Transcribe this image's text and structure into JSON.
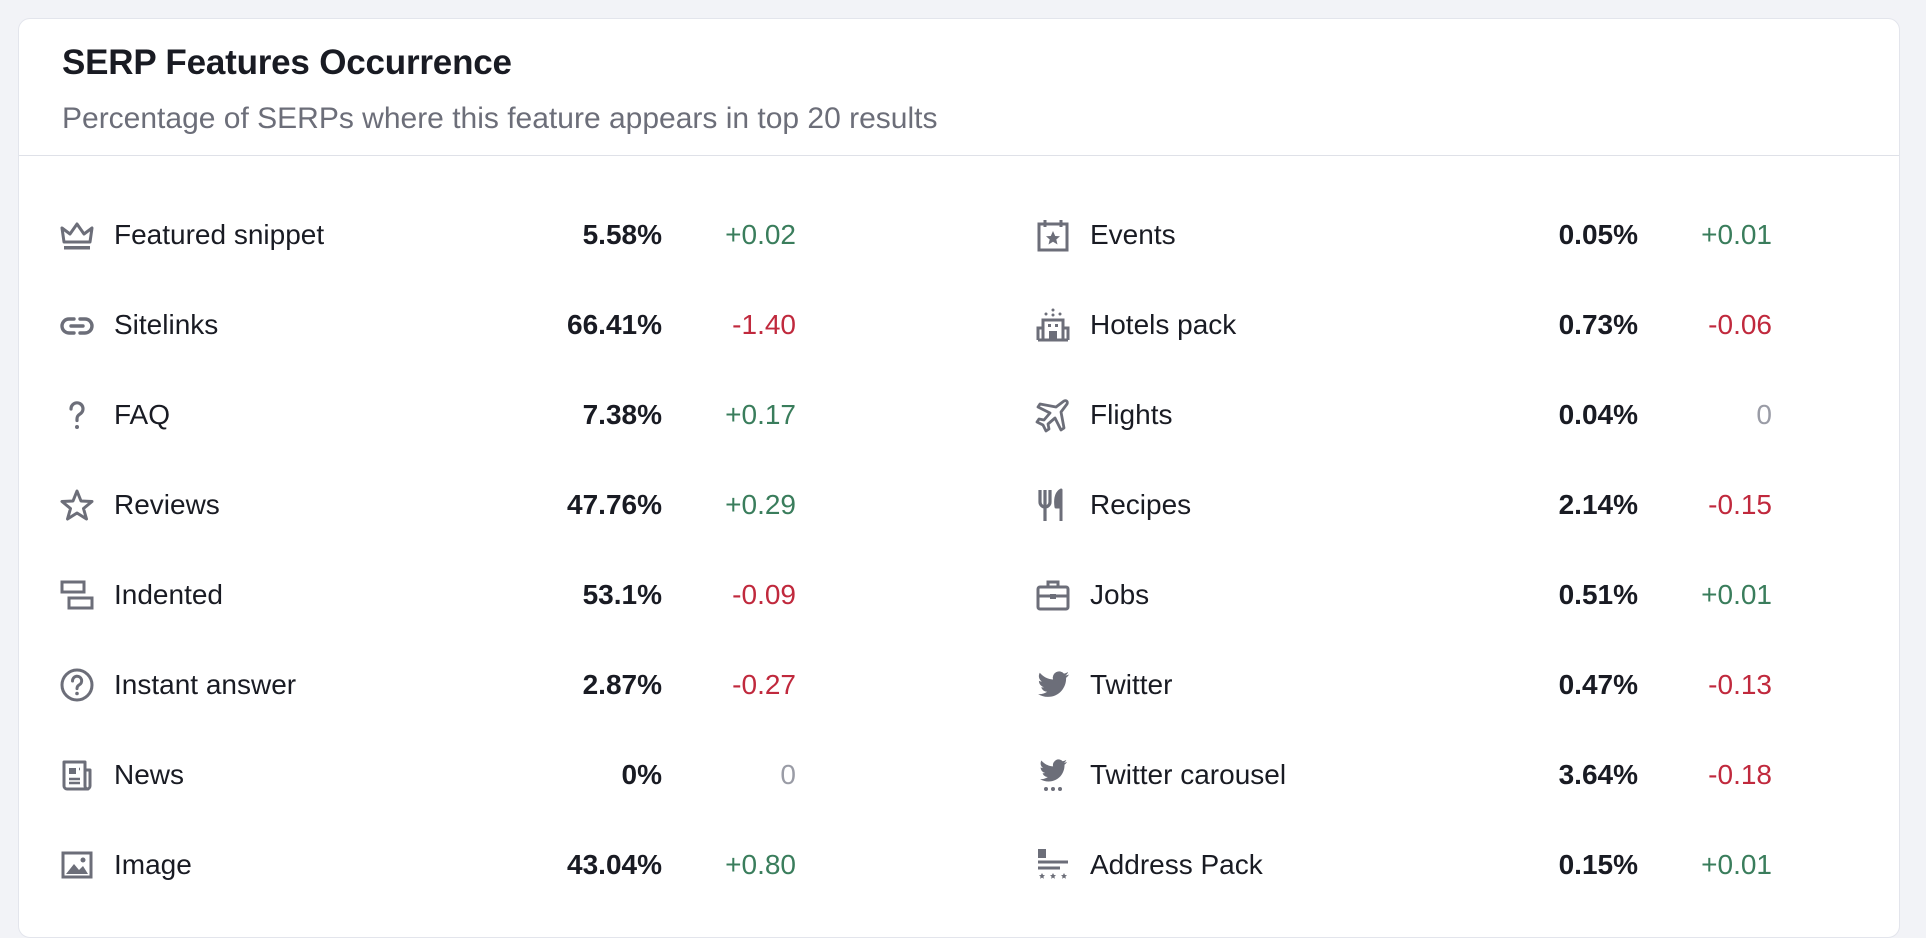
{
  "header": {
    "title": "SERP Features Occurrence",
    "subtitle": "Percentage of SERPs where this feature appears in top 20 results"
  },
  "colors": {
    "positive": "#3a7d5c",
    "negative": "#c0293d",
    "neutral": "#9a9ca6",
    "icon": "#6c6e79"
  },
  "left": [
    {
      "icon": "crown-icon",
      "label": "Featured snippet",
      "percent": "5.58%",
      "delta": "+0.02",
      "trend": "pos"
    },
    {
      "icon": "link-icon",
      "label": "Sitelinks",
      "percent": "66.41%",
      "delta": "-1.40",
      "trend": "neg"
    },
    {
      "icon": "question-icon",
      "label": "FAQ",
      "percent": "7.38%",
      "delta": "+0.17",
      "trend": "pos"
    },
    {
      "icon": "star-icon",
      "label": "Reviews",
      "percent": "47.76%",
      "delta": "+0.29",
      "trend": "pos"
    },
    {
      "icon": "indented-icon",
      "label": "Indented",
      "percent": "53.1%",
      "delta": "-0.09",
      "trend": "neg"
    },
    {
      "icon": "question-circle-icon",
      "label": "Instant answer",
      "percent": "2.87%",
      "delta": "-0.27",
      "trend": "neg"
    },
    {
      "icon": "news-icon",
      "label": "News",
      "percent": "0%",
      "delta": "0",
      "trend": "zero"
    },
    {
      "icon": "image-icon",
      "label": "Image",
      "percent": "43.04%",
      "delta": "+0.80",
      "trend": "pos"
    }
  ],
  "right": [
    {
      "icon": "calendar-star-icon",
      "label": "Events",
      "percent": "0.05%",
      "delta": "+0.01",
      "trend": "pos"
    },
    {
      "icon": "hotel-icon",
      "label": "Hotels pack",
      "percent": "0.73%",
      "delta": "-0.06",
      "trend": "neg"
    },
    {
      "icon": "plane-icon",
      "label": "Flights",
      "percent": "0.04%",
      "delta": "0",
      "trend": "zero"
    },
    {
      "icon": "fork-knife-icon",
      "label": "Recipes",
      "percent": "2.14%",
      "delta": "-0.15",
      "trend": "neg"
    },
    {
      "icon": "briefcase-icon",
      "label": "Jobs",
      "percent": "0.51%",
      "delta": "+0.01",
      "trend": "pos"
    },
    {
      "icon": "twitter-icon",
      "label": "Twitter",
      "percent": "0.47%",
      "delta": "-0.13",
      "trend": "neg"
    },
    {
      "icon": "twitter-carousel-icon",
      "label": "Twitter carousel",
      "percent": "3.64%",
      "delta": "-0.18",
      "trend": "neg"
    },
    {
      "icon": "address-pack-icon",
      "label": "Address Pack",
      "percent": "0.15%",
      "delta": "+0.01",
      "trend": "pos"
    }
  ]
}
